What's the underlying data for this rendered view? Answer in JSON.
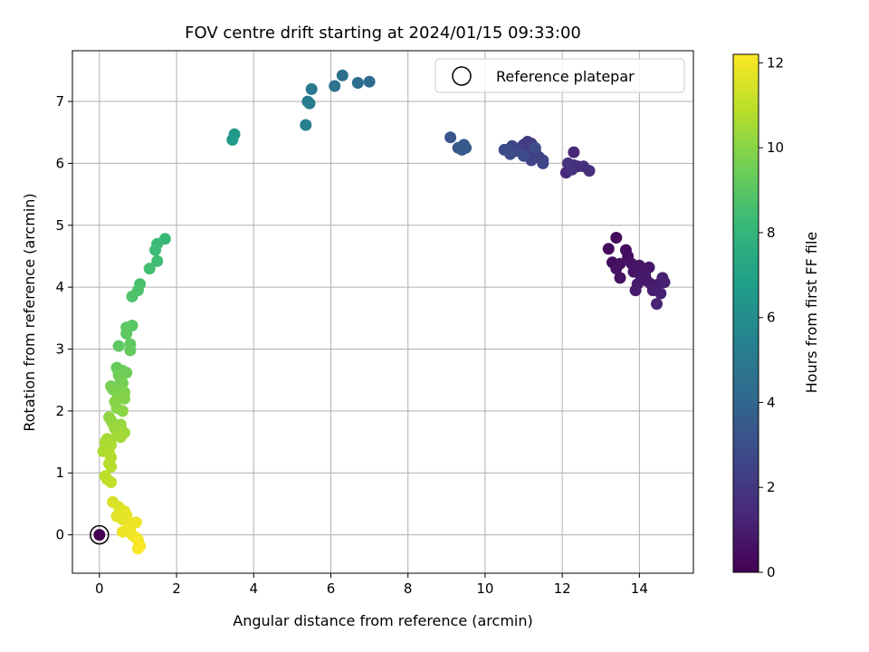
{
  "chart_data": {
    "type": "scatter",
    "title": "FOV centre drift starting at 2024/01/15 09:33:00",
    "xlabel": "Angular distance from reference (arcmin)",
    "ylabel": "Rotation from reference (arcmin)",
    "xlim": [
      -0.7,
      15.4
    ],
    "ylim": [
      -0.62,
      7.82
    ],
    "xticks": [
      0,
      2,
      4,
      6,
      8,
      10,
      12,
      14
    ],
    "yticks": [
      0,
      1,
      2,
      3,
      4,
      5,
      6,
      7
    ],
    "grid": true,
    "legend": {
      "position": "top-right",
      "entries": [
        "Reference platepar"
      ]
    },
    "reference_point": {
      "x": 0,
      "y": 0
    },
    "colorbar": {
      "label": "Hours from first FF file",
      "colormap": "viridis",
      "range": [
        0,
        12.2
      ],
      "ticks": [
        0,
        2,
        4,
        6,
        8,
        10,
        12
      ]
    },
    "colormap_stops": [
      "#440154",
      "#482878",
      "#3e4989",
      "#31688e",
      "#26828e",
      "#1f9e89",
      "#35b779",
      "#6ece58",
      "#b5de2b",
      "#fde725"
    ],
    "series": [
      {
        "points": [
          [
            0.0,
            0.0,
            0.0
          ],
          [
            13.4,
            4.8,
            0.3
          ],
          [
            13.2,
            4.62,
            0.35
          ],
          [
            13.65,
            4.6,
            0.4
          ],
          [
            13.7,
            4.5,
            0.45
          ],
          [
            13.3,
            4.4,
            0.5
          ],
          [
            13.5,
            4.38,
            0.55
          ],
          [
            13.4,
            4.3,
            0.6
          ],
          [
            13.8,
            4.38,
            0.62
          ],
          [
            13.85,
            4.25,
            0.65
          ],
          [
            14.0,
            4.35,
            0.7
          ],
          [
            14.1,
            4.3,
            0.72
          ],
          [
            14.25,
            4.32,
            0.75
          ],
          [
            14.05,
            4.15,
            0.8
          ],
          [
            14.15,
            4.2,
            0.82
          ],
          [
            13.95,
            4.05,
            0.85
          ],
          [
            13.9,
            3.95,
            0.9
          ],
          [
            14.3,
            4.05,
            0.95
          ],
          [
            14.4,
            4.0,
            1.0
          ],
          [
            14.5,
            4.05,
            1.02
          ],
          [
            14.6,
            4.1,
            1.05
          ],
          [
            14.6,
            4.15,
            1.1
          ],
          [
            14.65,
            4.08,
            1.12
          ],
          [
            14.55,
            3.9,
            1.15
          ],
          [
            14.45,
            3.73,
            1.2
          ],
          [
            13.5,
            4.15,
            0.58
          ],
          [
            14.2,
            4.1,
            0.9
          ],
          [
            14.35,
            3.95,
            1.08
          ],
          [
            12.3,
            6.18,
            1.4
          ],
          [
            12.1,
            5.85,
            1.45
          ],
          [
            12.2,
            5.95,
            1.5
          ],
          [
            12.3,
            5.97,
            1.55
          ],
          [
            12.4,
            5.95,
            1.6
          ],
          [
            12.55,
            5.95,
            1.65
          ],
          [
            12.7,
            5.88,
            1.7
          ],
          [
            12.25,
            5.9,
            1.75
          ],
          [
            12.15,
            6.0,
            1.8
          ],
          [
            11.1,
            6.35,
            2.1
          ],
          [
            11.0,
            6.3,
            2.15
          ],
          [
            11.2,
            6.32,
            2.2
          ],
          [
            10.9,
            6.25,
            2.25
          ],
          [
            11.3,
            6.2,
            2.3
          ],
          [
            11.1,
            6.15,
            2.35
          ],
          [
            11.4,
            6.1,
            2.4
          ],
          [
            11.5,
            6.05,
            2.45
          ],
          [
            11.2,
            6.05,
            2.5
          ],
          [
            11.5,
            6.0,
            2.55
          ],
          [
            10.7,
            6.28,
            2.6
          ],
          [
            10.8,
            6.2,
            2.65
          ],
          [
            10.6,
            6.22,
            2.7
          ],
          [
            10.5,
            6.22,
            2.75
          ],
          [
            10.65,
            6.15,
            2.8
          ],
          [
            11.0,
            6.12,
            2.85
          ],
          [
            11.3,
            6.25,
            2.9
          ],
          [
            9.1,
            6.42,
            3.3
          ],
          [
            9.3,
            6.25,
            3.35
          ],
          [
            9.45,
            6.3,
            3.4
          ],
          [
            9.5,
            6.25,
            3.45
          ],
          [
            9.4,
            6.22,
            3.5
          ],
          [
            7.0,
            7.32,
            4.3
          ],
          [
            6.7,
            7.3,
            4.4
          ],
          [
            6.3,
            7.42,
            4.5
          ],
          [
            6.1,
            7.25,
            4.6
          ],
          [
            5.5,
            7.2,
            5.0
          ],
          [
            5.45,
            6.97,
            5.1
          ],
          [
            5.4,
            7.0,
            5.2
          ],
          [
            5.35,
            6.62,
            5.3
          ],
          [
            3.5,
            6.47,
            6.5
          ],
          [
            3.45,
            6.38,
            6.6
          ],
          [
            1.7,
            4.78,
            8.2
          ],
          [
            1.5,
            4.7,
            8.3
          ],
          [
            1.45,
            4.6,
            8.35
          ],
          [
            1.5,
            4.42,
            8.4
          ],
          [
            1.3,
            4.3,
            8.5
          ],
          [
            1.05,
            4.05,
            8.6
          ],
          [
            1.0,
            3.95,
            8.7
          ],
          [
            0.85,
            3.85,
            8.8
          ],
          [
            0.85,
            3.38,
            9.0
          ],
          [
            0.7,
            3.35,
            9.05
          ],
          [
            0.7,
            3.25,
            9.1
          ],
          [
            0.5,
            3.05,
            9.15
          ],
          [
            0.8,
            3.08,
            9.2
          ],
          [
            0.8,
            2.98,
            9.25
          ],
          [
            0.45,
            2.7,
            9.3
          ],
          [
            0.5,
            2.62,
            9.35
          ],
          [
            0.6,
            2.65,
            9.4
          ],
          [
            0.7,
            2.62,
            9.45
          ],
          [
            0.5,
            2.58,
            9.5
          ],
          [
            0.55,
            2.5,
            9.55
          ],
          [
            0.6,
            2.45,
            9.6
          ],
          [
            0.3,
            2.4,
            9.65
          ],
          [
            0.35,
            2.35,
            9.7
          ],
          [
            0.45,
            2.3,
            9.75
          ],
          [
            0.65,
            2.3,
            9.8
          ],
          [
            0.5,
            2.22,
            9.85
          ],
          [
            0.65,
            2.2,
            9.9
          ],
          [
            0.4,
            2.15,
            9.95
          ],
          [
            0.45,
            2.05,
            10.0
          ],
          [
            0.6,
            2.0,
            10.05
          ],
          [
            0.25,
            1.9,
            10.1
          ],
          [
            0.3,
            1.85,
            10.15
          ],
          [
            0.35,
            1.8,
            10.2
          ],
          [
            0.55,
            1.78,
            10.25
          ],
          [
            0.4,
            1.72,
            10.3
          ],
          [
            0.5,
            1.68,
            10.35
          ],
          [
            0.65,
            1.65,
            10.4
          ],
          [
            0.45,
            1.6,
            10.45
          ],
          [
            0.55,
            1.58,
            10.5
          ],
          [
            0.2,
            1.55,
            10.55
          ],
          [
            0.15,
            1.5,
            10.6
          ],
          [
            0.3,
            1.45,
            10.65
          ],
          [
            0.1,
            1.35,
            10.7
          ],
          [
            0.25,
            1.32,
            10.75
          ],
          [
            0.3,
            1.25,
            10.8
          ],
          [
            0.25,
            1.15,
            10.85
          ],
          [
            0.3,
            1.1,
            10.9
          ],
          [
            0.15,
            0.95,
            10.95
          ],
          [
            0.2,
            0.9,
            11.0
          ],
          [
            0.3,
            0.85,
            11.05
          ],
          [
            0.35,
            0.53,
            11.5
          ],
          [
            0.5,
            0.45,
            11.55
          ],
          [
            0.45,
            0.3,
            11.6
          ],
          [
            0.65,
            0.38,
            11.65
          ],
          [
            0.6,
            0.25,
            11.7
          ],
          [
            0.55,
            0.3,
            11.72
          ],
          [
            0.7,
            0.32,
            11.75
          ],
          [
            0.75,
            0.2,
            11.8
          ],
          [
            0.85,
            0.18,
            11.82
          ],
          [
            0.95,
            0.2,
            11.85
          ],
          [
            0.6,
            0.05,
            11.88
          ],
          [
            0.75,
            0.08,
            11.9
          ],
          [
            0.85,
            0.0,
            11.95
          ],
          [
            0.95,
            -0.05,
            12.0
          ],
          [
            1.0,
            -0.08,
            12.05
          ],
          [
            1.05,
            -0.18,
            12.1
          ],
          [
            1.0,
            -0.22,
            12.15
          ],
          [
            0.8,
            0.12,
            11.92
          ]
        ]
      }
    ]
  }
}
